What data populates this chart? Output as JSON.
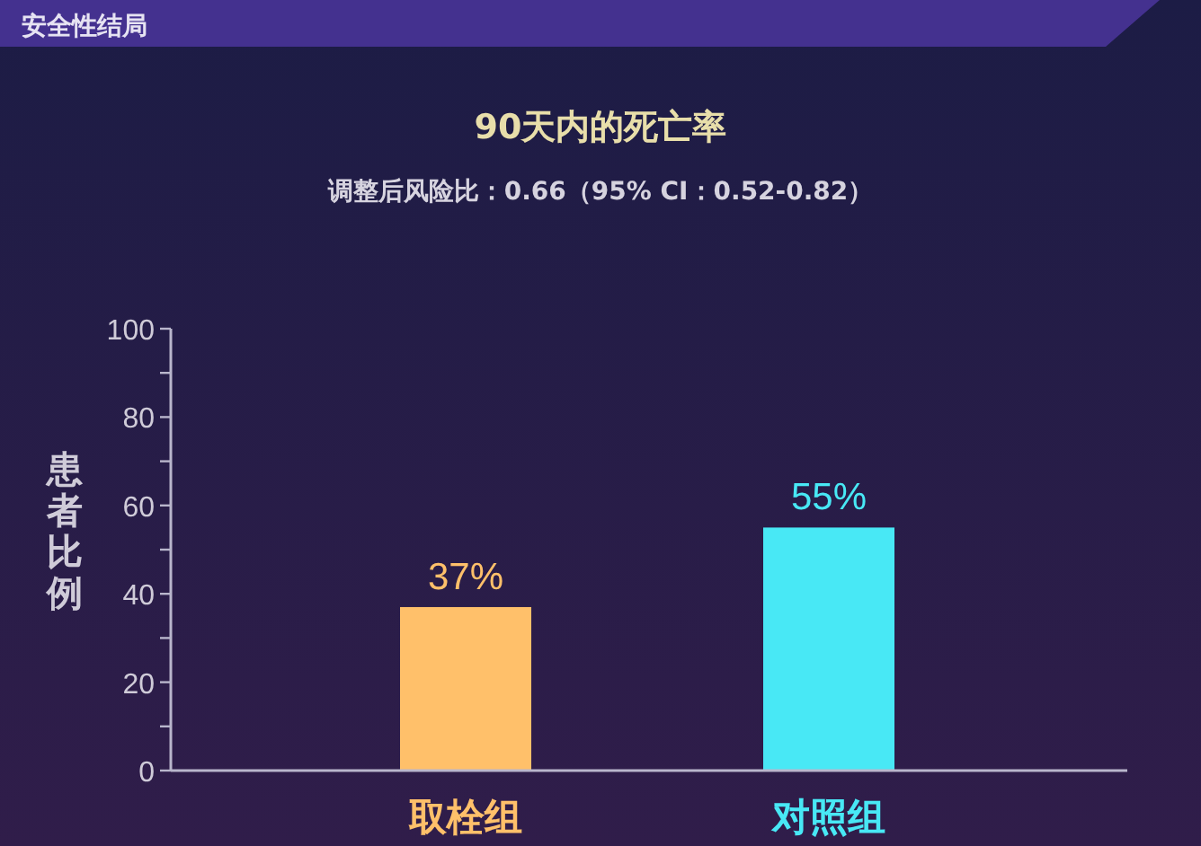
{
  "chart_data": {
    "type": "bar",
    "title": "90天内的死亡率",
    "subtitle": "调整后风险比：0.66（95% CI：0.52-0.82）",
    "ylabel": "患者比例",
    "annotations": [
      "安全性结局"
    ],
    "categories": [
      "取栓组",
      "对照组"
    ],
    "values": [
      37,
      55
    ],
    "colors": [
      "#ffc06a",
      "#48e8f5"
    ],
    "value_labels": [
      "37%",
      "55%"
    ],
    "ylim": [
      0,
      100
    ],
    "yticks": [
      0,
      {
        "value": 10,
        "label": null
      },
      20,
      {
        "value": 30,
        "label": null
      },
      40,
      {
        "value": 50,
        "label": null
      },
      60,
      {
        "value": 70,
        "label": null
      },
      80,
      {
        "value": 90,
        "label": null
      },
      100
    ]
  }
}
